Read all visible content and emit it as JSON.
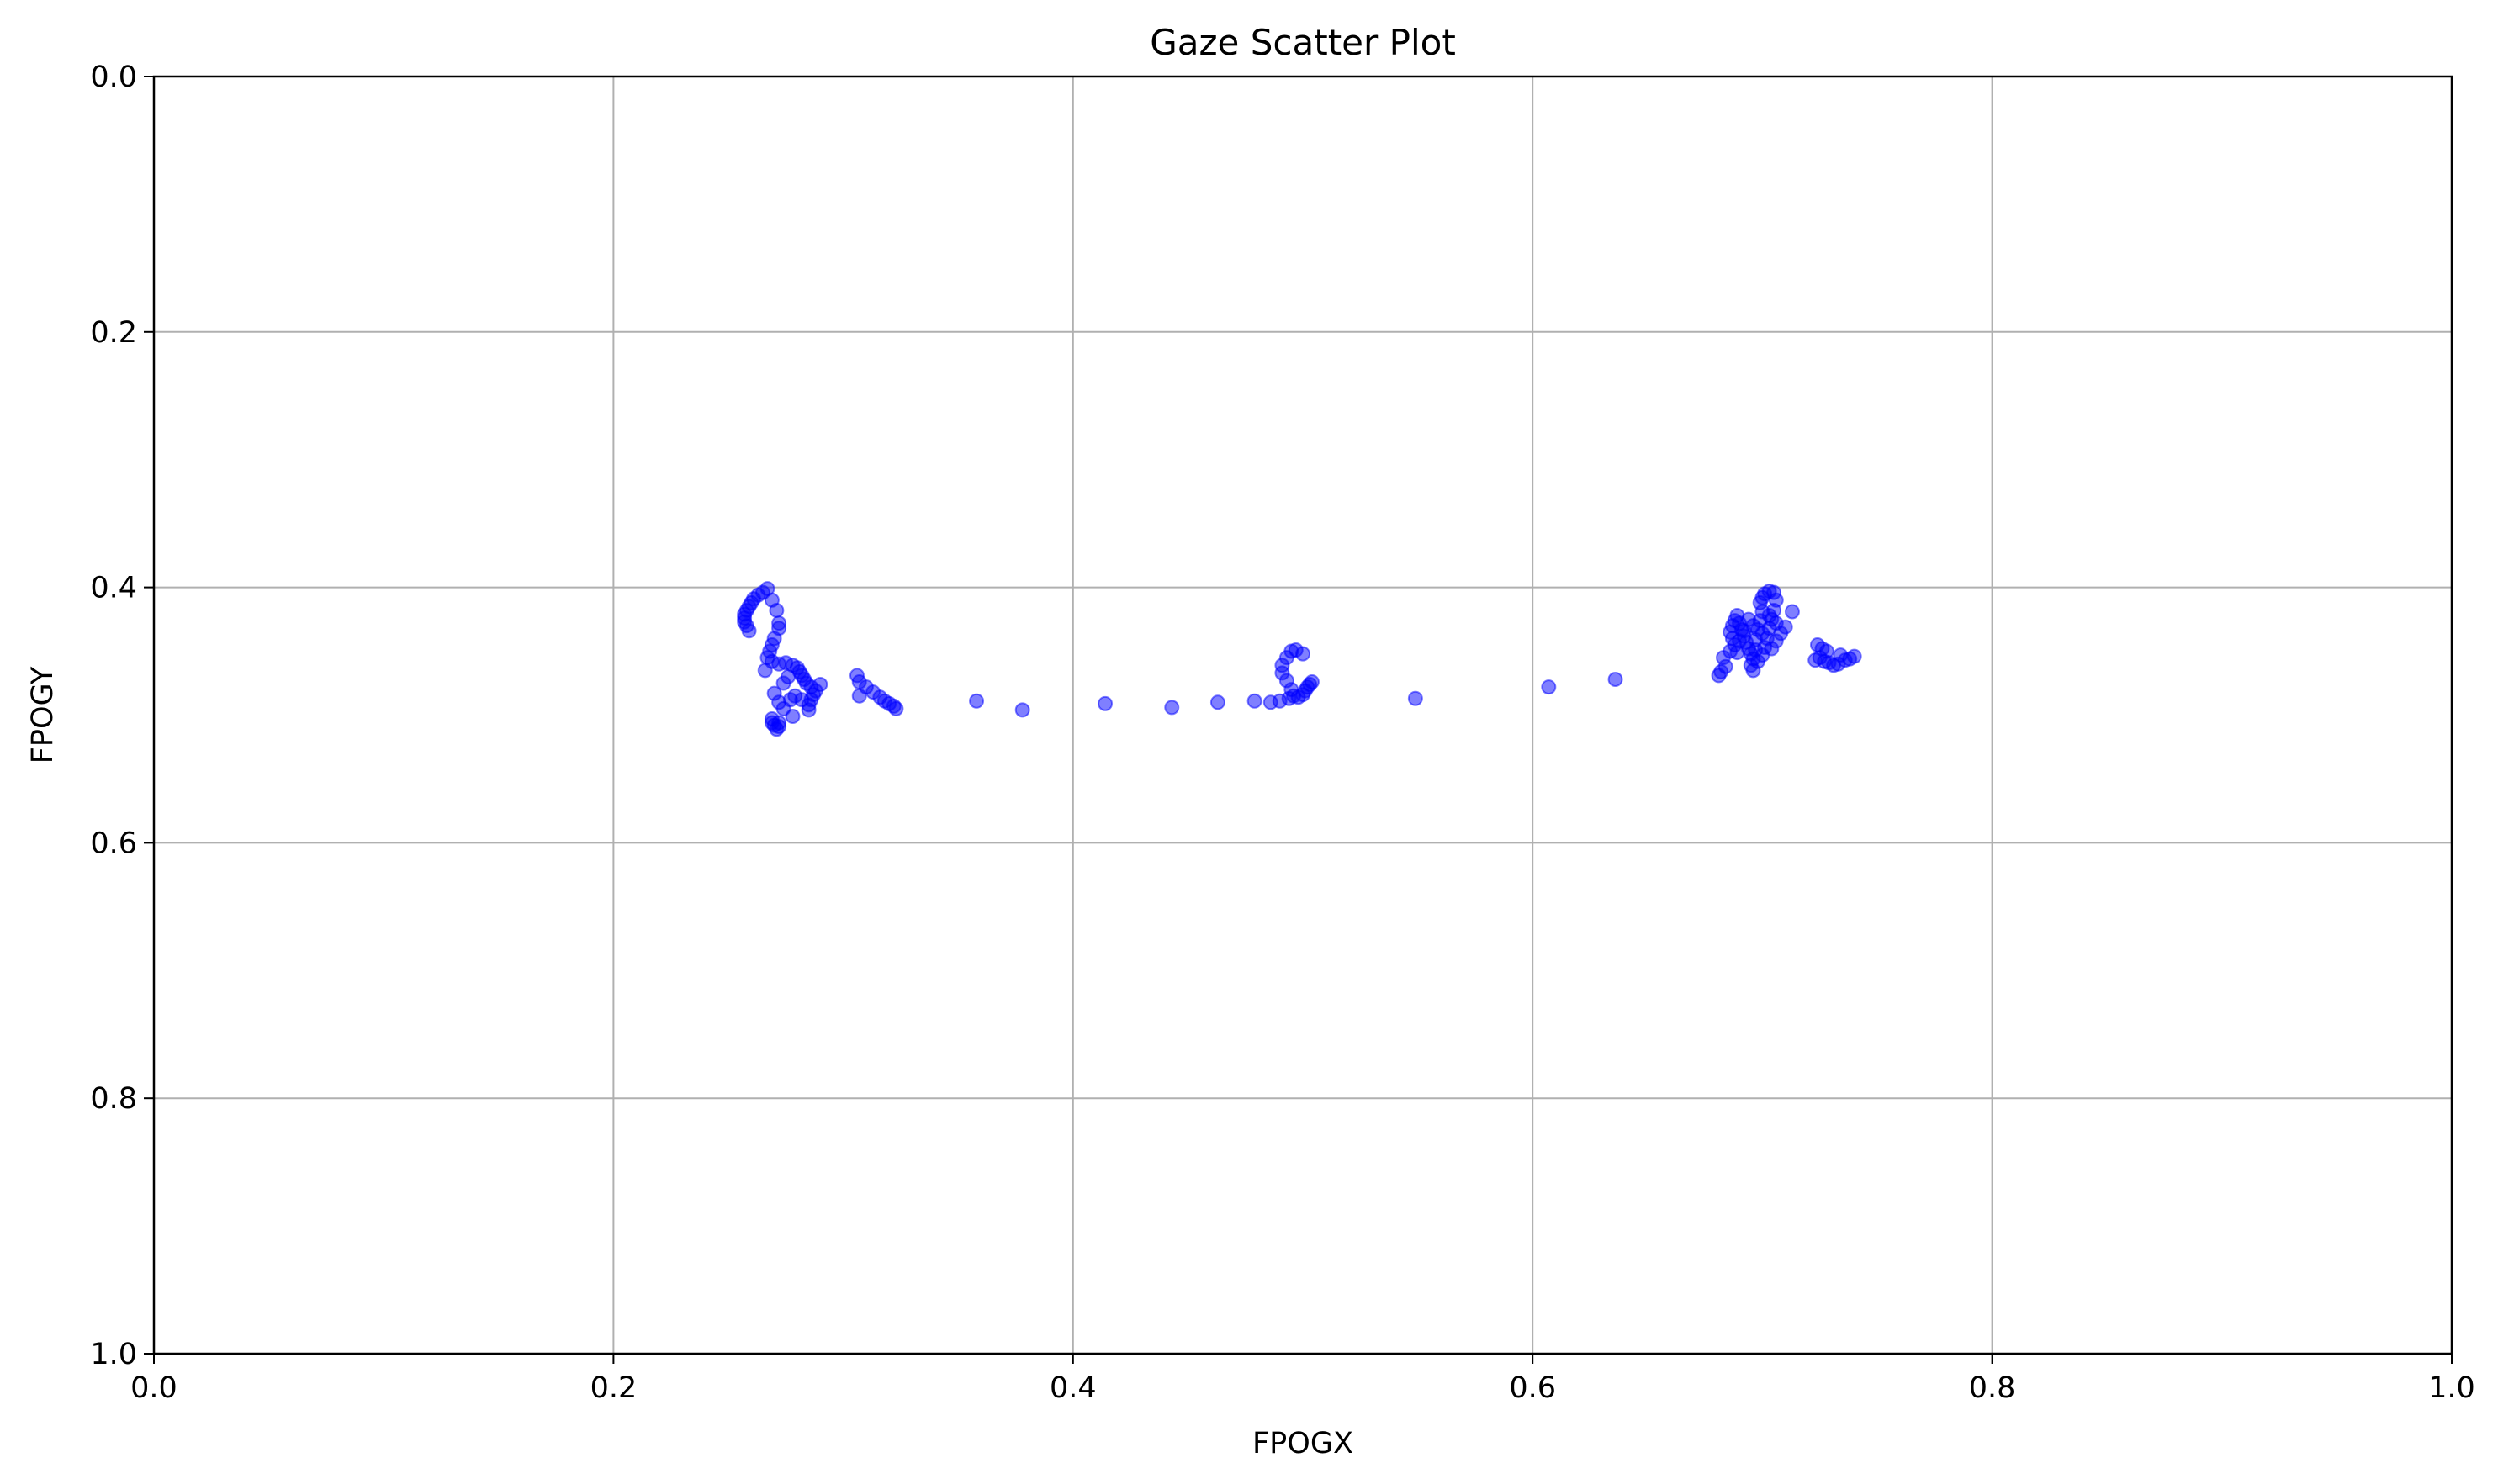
{
  "chart_data": {
    "type": "scatter",
    "title": "Gaze Scatter Plot",
    "xlabel": "FPOGX",
    "ylabel": "FPOGY",
    "xlim": [
      0.0,
      1.0
    ],
    "ylim": [
      0.0,
      1.0
    ],
    "y_inverted": true,
    "grid": true,
    "x_ticks": [
      "0.0",
      "0.2",
      "0.4",
      "0.6",
      "0.8",
      "1.0"
    ],
    "y_ticks": [
      "0.0",
      "0.2",
      "0.4",
      "0.6",
      "0.8",
      "1.0"
    ],
    "marker_color": "#0000ff",
    "marker_alpha": 0.5,
    "series": [
      {
        "points": [
          [
            0.267,
            0.401
          ],
          [
            0.265,
            0.404
          ],
          [
            0.263,
            0.406
          ],
          [
            0.261,
            0.409
          ],
          [
            0.26,
            0.412
          ],
          [
            0.259,
            0.415
          ],
          [
            0.258,
            0.418
          ],
          [
            0.257,
            0.421
          ],
          [
            0.257,
            0.424
          ],
          [
            0.257,
            0.427
          ],
          [
            0.258,
            0.43
          ],
          [
            0.259,
            0.434
          ],
          [
            0.269,
            0.41
          ],
          [
            0.271,
            0.418
          ],
          [
            0.272,
            0.428
          ],
          [
            0.272,
            0.432
          ],
          [
            0.27,
            0.44
          ],
          [
            0.269,
            0.445
          ],
          [
            0.268,
            0.45
          ],
          [
            0.267,
            0.455
          ],
          [
            0.269,
            0.458
          ],
          [
            0.272,
            0.46
          ],
          [
            0.275,
            0.459
          ],
          [
            0.278,
            0.461
          ],
          [
            0.28,
            0.463
          ],
          [
            0.281,
            0.466
          ],
          [
            0.282,
            0.469
          ],
          [
            0.283,
            0.472
          ],
          [
            0.284,
            0.475
          ],
          [
            0.286,
            0.478
          ],
          [
            0.288,
            0.481
          ],
          [
            0.287,
            0.484
          ],
          [
            0.286,
            0.488
          ],
          [
            0.285,
            0.492
          ],
          [
            0.285,
            0.496
          ],
          [
            0.282,
            0.488
          ],
          [
            0.279,
            0.485
          ],
          [
            0.277,
            0.488
          ],
          [
            0.276,
            0.47
          ],
          [
            0.274,
            0.475
          ],
          [
            0.266,
            0.465
          ],
          [
            0.27,
            0.483
          ],
          [
            0.272,
            0.49
          ],
          [
            0.274,
            0.495
          ],
          [
            0.278,
            0.501
          ],
          [
            0.269,
            0.503
          ],
          [
            0.269,
            0.506
          ],
          [
            0.27,
            0.508
          ],
          [
            0.271,
            0.511
          ],
          [
            0.272,
            0.509
          ],
          [
            0.272,
            0.506
          ],
          [
            0.29,
            0.476
          ],
          [
            0.306,
            0.469
          ],
          [
            0.307,
            0.474
          ],
          [
            0.31,
            0.478
          ],
          [
            0.313,
            0.482
          ],
          [
            0.316,
            0.486
          ],
          [
            0.318,
            0.489
          ],
          [
            0.32,
            0.491
          ],
          [
            0.322,
            0.493
          ],
          [
            0.323,
            0.495
          ],
          [
            0.307,
            0.485
          ],
          [
            0.358,
            0.489
          ],
          [
            0.378,
            0.496
          ],
          [
            0.414,
            0.491
          ],
          [
            0.443,
            0.494
          ],
          [
            0.463,
            0.49
          ],
          [
            0.479,
            0.489
          ],
          [
            0.486,
            0.49
          ],
          [
            0.49,
            0.489
          ],
          [
            0.494,
            0.487
          ],
          [
            0.495,
            0.48
          ],
          [
            0.493,
            0.473
          ],
          [
            0.491,
            0.467
          ],
          [
            0.491,
            0.461
          ],
          [
            0.493,
            0.455
          ],
          [
            0.495,
            0.45
          ],
          [
            0.497,
            0.449
          ],
          [
            0.5,
            0.452
          ],
          [
            0.496,
            0.485
          ],
          [
            0.498,
            0.486
          ],
          [
            0.5,
            0.484
          ],
          [
            0.501,
            0.481
          ],
          [
            0.502,
            0.478
          ],
          [
            0.503,
            0.476
          ],
          [
            0.504,
            0.474
          ],
          [
            0.549,
            0.487
          ],
          [
            0.607,
            0.478
          ],
          [
            0.636,
            0.472
          ],
          [
            0.681,
            0.469
          ],
          [
            0.682,
            0.466
          ],
          [
            0.684,
            0.462
          ],
          [
            0.683,
            0.455
          ],
          [
            0.686,
            0.45
          ],
          [
            0.688,
            0.445
          ],
          [
            0.687,
            0.44
          ],
          [
            0.686,
            0.435
          ],
          [
            0.687,
            0.43
          ],
          [
            0.688,
            0.426
          ],
          [
            0.689,
            0.422
          ],
          [
            0.69,
            0.428
          ],
          [
            0.691,
            0.433
          ],
          [
            0.692,
            0.438
          ],
          [
            0.693,
            0.443
          ],
          [
            0.694,
            0.448
          ],
          [
            0.695,
            0.452
          ],
          [
            0.696,
            0.456
          ],
          [
            0.695,
            0.461
          ],
          [
            0.696,
            0.465
          ],
          [
            0.698,
            0.458
          ],
          [
            0.697,
            0.449
          ],
          [
            0.697,
            0.441
          ],
          [
            0.698,
            0.433
          ],
          [
            0.699,
            0.426
          ],
          [
            0.7,
            0.419
          ],
          [
            0.699,
            0.412
          ],
          [
            0.7,
            0.408
          ],
          [
            0.701,
            0.405
          ],
          [
            0.703,
            0.403
          ],
          [
            0.705,
            0.404
          ],
          [
            0.706,
            0.41
          ],
          [
            0.705,
            0.418
          ],
          [
            0.704,
            0.425
          ],
          [
            0.703,
            0.432
          ],
          [
            0.702,
            0.44
          ],
          [
            0.701,
            0.447
          ],
          [
            0.7,
            0.453
          ],
          [
            0.704,
            0.448
          ],
          [
            0.706,
            0.442
          ],
          [
            0.708,
            0.436
          ],
          [
            0.71,
            0.431
          ],
          [
            0.713,
            0.419
          ],
          [
            0.706,
            0.428
          ],
          [
            0.703,
            0.422
          ],
          [
            0.7,
            0.436
          ],
          [
            0.696,
            0.43
          ],
          [
            0.694,
            0.425
          ],
          [
            0.692,
            0.434
          ],
          [
            0.69,
            0.442
          ],
          [
            0.689,
            0.451
          ],
          [
            0.724,
            0.445
          ],
          [
            0.726,
            0.448
          ],
          [
            0.728,
            0.45
          ],
          [
            0.725,
            0.455
          ],
          [
            0.727,
            0.458
          ],
          [
            0.729,
            0.459
          ],
          [
            0.731,
            0.461
          ],
          [
            0.733,
            0.46
          ],
          [
            0.734,
            0.453
          ],
          [
            0.736,
            0.457
          ],
          [
            0.738,
            0.456
          ],
          [
            0.74,
            0.454
          ],
          [
            0.723,
            0.457
          ]
        ]
      }
    ]
  }
}
